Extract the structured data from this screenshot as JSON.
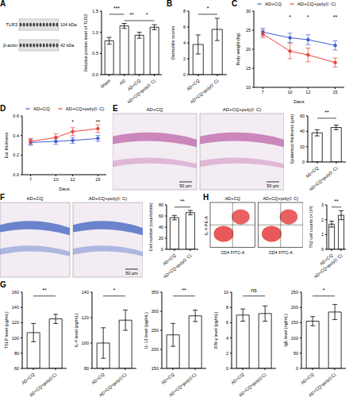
{
  "chart_data": [
    {
      "type": "blot",
      "panel_label": "A",
      "bands": [
        {
          "name": "TLR3",
          "size": "104 kDa"
        },
        {
          "name": "β-actin",
          "size": "42 kDa"
        }
      ]
    },
    {
      "type": "bar",
      "categories": [
        "Sham",
        "AD",
        "AD+CQ",
        "AD+CQ+poly(I: C)"
      ],
      "values": [
        0.8,
        1.15,
        0.93,
        1.12
      ],
      "errors": [
        0.08,
        0.06,
        0.07,
        0.06
      ],
      "y_label": "Relative protein level of TLR3",
      "ylim": [
        0,
        1.5
      ],
      "yticks": [
        {
          "value": 0,
          "label": "0.0"
        },
        0.5,
        {
          "value": 1,
          "label": "1.0"
        },
        1.5
      ],
      "color": "#ffffff",
      "annotations": [
        {
          "text": "***",
          "between": [
            "Sham",
            "AD"
          ]
        },
        {
          "text": "**",
          "between": [
            "AD",
            "AD+CQ"
          ]
        },
        {
          "text": "*",
          "between": [
            "AD+CQ",
            "AD+CQ+poly(I: C)"
          ]
        }
      ]
    },
    {
      "type": "bar",
      "panel_label": "B",
      "categories": [
        "AD+CQ",
        "AD+CQ+poly(I: C)"
      ],
      "values": [
        3.8,
        5.7
      ],
      "errors": [
        1.2,
        1.4
      ],
      "y_label": "Dermatitis scores",
      "ylim": [
        0,
        8
      ],
      "yticks": [
        0,
        2,
        4,
        6,
        8
      ],
      "color": "#ffffff",
      "annotations": [
        {
          "text": "*",
          "between": [
            "AD+CQ",
            "AD+CQ+poly(I: C)"
          ]
        }
      ]
    },
    {
      "type": "line",
      "panel_label": "C",
      "x": [
        7,
        10,
        12,
        15
      ],
      "xlim": [
        6,
        16
      ],
      "xticks": [
        7,
        10,
        12,
        15
      ],
      "x_label": "Days",
      "y_label": "Body weight (kg)",
      "ylim": [
        10,
        30
      ],
      "yticks": [
        10,
        15,
        20,
        25,
        30
      ],
      "legend": "top",
      "series": [
        {
          "name": "AD+CQ",
          "color": "#3f5fd4",
          "marker": "circle",
          "values": [
            24.5,
            23,
            22.5,
            21
          ],
          "errors": [
            1,
            1.2,
            1.3,
            1.2
          ]
        },
        {
          "name": "AD+CQ+poly(I: C)",
          "color": "#e8453c",
          "marker": "circle",
          "values": [
            24,
            19.5,
            18.5,
            16.5
          ],
          "errors": [
            1,
            2,
            1.8,
            1.2
          ]
        }
      ],
      "annotations": [
        {
          "text": "*",
          "at": 10
        },
        {
          "text": "*",
          "at": 12
        },
        {
          "text": "**",
          "at": 15
        }
      ]
    },
    {
      "type": "line",
      "panel_label": "D",
      "x": [
        7,
        10,
        12,
        15
      ],
      "xlim": [
        6,
        16
      ],
      "xticks": [
        7,
        10,
        12,
        15
      ],
      "x_label": "Days",
      "y_label": "Ear thickness",
      "ylim": [
        0,
        0.6
      ],
      "yticks": [
        {
          "value": 0,
          "label": "0.0"
        },
        0.2,
        0.4,
        0.6
      ],
      "legend": "top",
      "series": [
        {
          "name": "AD+CQ",
          "color": "#3f5fd4",
          "marker": "circle",
          "values": [
            0.33,
            0.34,
            0.35,
            0.37
          ],
          "errors": [
            0.03,
            0.03,
            0.03,
            0.03
          ]
        },
        {
          "name": "AD+CQ+poly(I: C)",
          "color": "#e8453c",
          "marker": "circle",
          "values": [
            0.34,
            0.38,
            0.44,
            0.47
          ],
          "errors": [
            0.03,
            0.04,
            0.04,
            0.04
          ]
        }
      ],
      "annotations": [
        {
          "text": "*",
          "at": 12
        },
        {
          "text": "**",
          "at": 15
        }
      ]
    },
    {
      "type": "micrograph",
      "panel_label": "E",
      "color": "#c77bb5",
      "images": [
        {
          "label": "AD+CQ",
          "scale": "50 μm"
        },
        {
          "label": "AD+CQ+poly(I: C)",
          "scale": "50 μm"
        }
      ]
    },
    {
      "type": "bar",
      "categories": [
        "AD+CQ",
        "AD+CQ+poly(I: C)"
      ],
      "values": [
        38,
        45
      ],
      "errors": [
        4,
        3
      ],
      "y_label": "Epidermal thickness (μm)",
      "ylim": [
        0,
        60
      ],
      "yticks": [
        0,
        20,
        40,
        60
      ],
      "color": "#ffffff",
      "annotations": [
        {
          "text": "**",
          "between": [
            "AD+CQ",
            "AD+CQ+poly(I: C)"
          ]
        }
      ]
    },
    {
      "type": "micrograph",
      "panel_label": "F",
      "color": "#5b78c8",
      "images": [
        {
          "label": "AD+CQ"
        },
        {
          "label": "AD+CQ+poly(I: C)",
          "scale": "50 μm"
        }
      ]
    },
    {
      "type": "bar",
      "categories": [
        "AD+CQ",
        "AD+CQ+poly(I: C)"
      ],
      "values": [
        57,
        66
      ],
      "errors": [
        4,
        4
      ],
      "y_label": "Cell number (counts/site)",
      "ylim": [
        0,
        80
      ],
      "yticks": [
        0,
        20,
        40,
        60,
        80
      ],
      "color": "#ffffff",
      "annotations": [
        {
          "text": "**",
          "between": [
            "AD+CQ",
            "AD+CQ+poly(I: C)"
          ]
        }
      ]
    },
    {
      "type": "flow",
      "panel_label": "H",
      "x_label": "CD4 FITC-A",
      "y_label": "IL-4 PE-A",
      "color": "#e02020",
      "images": [
        {
          "label": "AD+CQ"
        },
        {
          "label": "AD+CQ+poly(I: C)"
        }
      ]
    },
    {
      "type": "bar",
      "categories": [
        "AD+CQ",
        "AD+CQ+poly(I: C)"
      ],
      "values": [
        1.7,
        2.3
      ],
      "errors": [
        0.2,
        0.3
      ],
      "y_label": "Th2 cell counts (×10³)",
      "ylim": [
        0,
        3
      ],
      "yticks": [
        0,
        1,
        2,
        3
      ],
      "color": "#ffffff",
      "annotations": [
        {
          "text": "**",
          "between": [
            "AD+CQ",
            "AD+CQ+poly(I: C)"
          ]
        }
      ]
    },
    {
      "type": "bar",
      "panel_label": "G",
      "categories": [
        "AD+CQ",
        "AD+CQ+poly(I:C)"
      ],
      "values": [
        107,
        125
      ],
      "errors": [
        12,
        6
      ],
      "y_label": "TSLP level (pg/mL)",
      "ylim": [
        60,
        160
      ],
      "yticks": [
        60,
        80,
        100,
        120,
        140,
        160
      ],
      "color": "#ffffff",
      "annotations": [
        {
          "text": "**",
          "between": [
            "AD+CQ",
            "AD+CQ+poly(I:C)"
          ]
        }
      ]
    },
    {
      "type": "bar",
      "categories": [
        "AD+CQ",
        "AD+CQ+poly(I:C)"
      ],
      "values": [
        100,
        118
      ],
      "errors": [
        12,
        8
      ],
      "y_label": "IL-4 level (pg/mL)",
      "ylim": [
        80,
        140
      ],
      "yticks": [
        80,
        100,
        120,
        140
      ],
      "color": "#ffffff",
      "annotations": [
        {
          "text": "*",
          "between": [
            "AD+CQ",
            "AD+CQ+poly(I:C)"
          ]
        }
      ]
    },
    {
      "type": "bar",
      "categories": [
        "AD+CQ",
        "AD+CQ+poly(I:C)"
      ],
      "values": [
        238,
        288
      ],
      "errors": [
        30,
        15
      ],
      "y_label": "IL-13 level (pg/mL)",
      "ylim": [
        150,
        350
      ],
      "yticks": [
        150,
        200,
        250,
        300,
        350
      ],
      "color": "#ffffff",
      "annotations": [
        {
          "text": "**",
          "between": [
            "AD+CQ",
            "AD+CQ+poly(I:C)"
          ]
        }
      ]
    },
    {
      "type": "bar",
      "categories": [
        "AD+CQ",
        "AD+CQ+poly(I:C)"
      ],
      "values": [
        7,
        7.2
      ],
      "errors": [
        0.8,
        1
      ],
      "y_label": "IFN-γ level (pg/mL)",
      "ylim": [
        0,
        10
      ],
      "yticks": [
        0,
        2,
        4,
        6,
        8,
        10
      ],
      "color": "#ffffff",
      "annotations": [
        {
          "text": "ns",
          "between": [
            "AD+CQ",
            "AD+CQ+poly(I:C)"
          ]
        }
      ]
    },
    {
      "type": "bar",
      "categories": [
        "AD+CQ",
        "AD+CQ+poly(I:C)"
      ],
      "values": [
        155,
        185
      ],
      "errors": [
        15,
        25
      ],
      "y_label": "IgE level (ng/mL)",
      "ylim": [
        0,
        250
      ],
      "yticks": [
        0,
        50,
        100,
        150,
        200,
        250
      ],
      "color": "#ffffff",
      "annotations": [
        {
          "text": "*",
          "between": [
            "AD+CQ",
            "AD+CQ+poly(I:C)"
          ]
        }
      ]
    }
  ]
}
